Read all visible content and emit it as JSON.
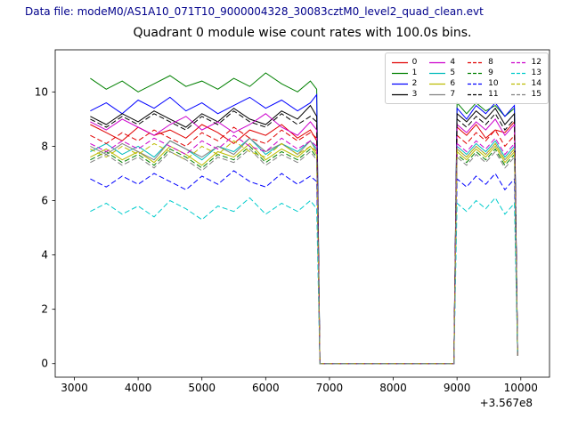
{
  "header": {
    "data_file_label": "Data file: modeM0/AS1A10_071T10_9000004328_30083cztM0_level2_quad_clean.evt"
  },
  "colors": {
    "data_file_text": "#00008b",
    "title_text": "#000000",
    "axes": "#000000",
    "legend_border": "#cccccc"
  },
  "chart_data": {
    "type": "line",
    "title": "Quadrant 0 module wise count rates with 100.0s bins.",
    "xlabel": "",
    "ylabel": "",
    "x_offset_label": "+3.567e8",
    "xlim": [
      2700,
      10450
    ],
    "ylim": [
      -0.5,
      11.55
    ],
    "x_ticks": [
      3000,
      4000,
      5000,
      6000,
      7000,
      8000,
      9000,
      10000
    ],
    "y_ticks": [
      0,
      2,
      4,
      6,
      8,
      10
    ],
    "grid": false,
    "legend_position": "upper right",
    "legend_columns": 4,
    "x": [
      3250,
      3500,
      3750,
      4000,
      4250,
      4500,
      4750,
      5000,
      5250,
      5500,
      5750,
      6000,
      6250,
      6500,
      6700,
      6800,
      6850,
      8950,
      9000,
      9150,
      9300,
      9450,
      9600,
      9750,
      9900,
      9950
    ],
    "series": [
      {
        "name": "0",
        "color": "#e00000",
        "style": "solid",
        "values": [
          8.8,
          8.5,
          8.2,
          8.7,
          8.4,
          8.6,
          8.3,
          8.8,
          8.5,
          8.1,
          8.6,
          8.4,
          8.8,
          8.3,
          8.6,
          8.2,
          0,
          0,
          8.7,
          8.4,
          8.8,
          8.3,
          8.6,
          8.5,
          8.9,
          0.3
        ]
      },
      {
        "name": "1",
        "color": "#008000",
        "style": "solid",
        "values": [
          10.5,
          10.1,
          10.4,
          10.0,
          10.3,
          10.6,
          10.2,
          10.4,
          10.1,
          10.5,
          10.2,
          10.7,
          10.3,
          10.0,
          10.4,
          10.1,
          0,
          0,
          9.6,
          9.2,
          9.6,
          9.3,
          9.5,
          9.1,
          9.4,
          0.3
        ]
      },
      {
        "name": "2",
        "color": "#0000ff",
        "style": "solid",
        "values": [
          9.3,
          9.6,
          9.2,
          9.7,
          9.4,
          9.8,
          9.3,
          9.6,
          9.2,
          9.5,
          9.8,
          9.4,
          9.7,
          9.3,
          9.6,
          9.9,
          0,
          0,
          9.4,
          9.0,
          9.5,
          9.2,
          9.6,
          9.1,
          9.5,
          0.3
        ]
      },
      {
        "name": "3",
        "color": "#000000",
        "style": "solid",
        "values": [
          9.1,
          8.8,
          9.2,
          8.9,
          9.3,
          9.0,
          8.7,
          9.2,
          8.9,
          9.4,
          9.0,
          8.8,
          9.3,
          9.0,
          9.5,
          9.1,
          0,
          0,
          9.2,
          8.9,
          9.3,
          9.0,
          9.4,
          8.8,
          9.2,
          0.3
        ]
      },
      {
        "name": "4",
        "color": "#cc00cc",
        "style": "solid",
        "values": [
          8.9,
          8.6,
          9.0,
          8.7,
          8.4,
          8.8,
          9.1,
          8.6,
          8.9,
          8.5,
          8.8,
          9.2,
          8.7,
          8.4,
          8.9,
          8.6,
          0,
          0,
          8.8,
          8.5,
          8.9,
          8.6,
          9.0,
          8.4,
          8.8,
          0.3
        ]
      },
      {
        "name": "5",
        "color": "#00bbbb",
        "style": "solid",
        "values": [
          7.8,
          8.1,
          7.7,
          8.0,
          7.6,
          8.2,
          7.9,
          7.5,
          8.0,
          7.8,
          8.3,
          7.7,
          8.1,
          7.8,
          8.2,
          7.9,
          0,
          0,
          8.0,
          7.7,
          8.1,
          7.8,
          8.2,
          7.6,
          8.0,
          0.3
        ]
      },
      {
        "name": "6",
        "color": "#bbbb00",
        "style": "solid",
        "values": [
          7.6,
          7.9,
          7.5,
          7.8,
          7.4,
          8.0,
          7.7,
          7.3,
          7.8,
          7.6,
          8.1,
          7.5,
          7.9,
          7.6,
          8.0,
          7.7,
          0,
          0,
          7.8,
          7.5,
          7.9,
          7.6,
          8.0,
          7.4,
          7.8,
          0.3
        ]
      },
      {
        "name": "7",
        "color": "#808080",
        "style": "solid",
        "values": [
          8.0,
          7.7,
          8.1,
          7.8,
          7.5,
          8.2,
          7.9,
          7.6,
          8.0,
          7.7,
          8.3,
          7.8,
          8.1,
          7.7,
          8.2,
          7.8,
          0,
          0,
          7.9,
          7.6,
          8.0,
          7.7,
          8.1,
          7.5,
          7.9,
          0.3
        ]
      },
      {
        "name": "8",
        "color": "#e00000",
        "style": "dashed",
        "values": [
          8.4,
          8.1,
          8.5,
          8.2,
          8.6,
          8.3,
          8.0,
          8.5,
          8.2,
          8.7,
          8.3,
          8.1,
          8.6,
          8.2,
          8.5,
          8.3,
          0,
          0,
          8.4,
          8.1,
          8.5,
          8.2,
          8.6,
          8.0,
          8.4,
          0.3
        ]
      },
      {
        "name": "9",
        "color": "#008000",
        "style": "dashed",
        "values": [
          7.5,
          7.8,
          7.4,
          7.7,
          7.3,
          7.9,
          7.6,
          7.2,
          7.7,
          7.5,
          8.0,
          7.4,
          7.8,
          7.5,
          7.9,
          7.6,
          0,
          0,
          7.7,
          7.4,
          7.8,
          7.5,
          7.9,
          7.3,
          7.7,
          0.3
        ]
      },
      {
        "name": "10",
        "color": "#0000ff",
        "style": "dashed",
        "values": [
          6.8,
          6.5,
          6.9,
          6.6,
          7.0,
          6.7,
          6.4,
          6.9,
          6.6,
          7.1,
          6.7,
          6.5,
          7.0,
          6.6,
          6.9,
          6.7,
          0,
          0,
          6.8,
          6.5,
          6.9,
          6.6,
          7.0,
          6.4,
          6.8,
          0.3
        ]
      },
      {
        "name": "11",
        "color": "#000000",
        "style": "dashed",
        "values": [
          9.0,
          8.7,
          9.1,
          8.8,
          9.2,
          8.9,
          8.6,
          9.1,
          8.8,
          9.3,
          8.9,
          8.7,
          9.2,
          8.8,
          9.1,
          8.9,
          0,
          0,
          9.0,
          8.7,
          9.1,
          8.8,
          9.2,
          8.6,
          9.0,
          0.3
        ]
      },
      {
        "name": "12",
        "color": "#cc00cc",
        "style": "dashed",
        "values": [
          8.1,
          7.8,
          8.2,
          7.9,
          8.3,
          8.0,
          7.7,
          8.2,
          7.9,
          8.4,
          8.0,
          7.8,
          8.3,
          7.9,
          8.2,
          8.0,
          0,
          0,
          8.1,
          7.8,
          8.2,
          7.9,
          8.3,
          7.7,
          8.1,
          0.3
        ]
      },
      {
        "name": "13",
        "color": "#00cccc",
        "style": "dashed",
        "values": [
          5.6,
          5.9,
          5.5,
          5.8,
          5.4,
          6.0,
          5.7,
          5.3,
          5.8,
          5.6,
          6.1,
          5.5,
          5.9,
          5.6,
          6.0,
          5.7,
          0,
          0,
          5.9,
          5.6,
          6.0,
          5.7,
          6.1,
          5.5,
          5.9,
          0.3
        ]
      },
      {
        "name": "14",
        "color": "#bbbb00",
        "style": "dashed",
        "values": [
          7.9,
          7.6,
          8.0,
          7.7,
          8.1,
          7.8,
          7.5,
          8.0,
          7.7,
          8.2,
          7.8,
          7.6,
          8.1,
          7.7,
          8.0,
          7.8,
          0,
          0,
          7.9,
          7.6,
          8.0,
          7.7,
          8.1,
          7.5,
          7.9,
          0.3
        ]
      },
      {
        "name": "15",
        "color": "#808080",
        "style": "dashed",
        "values": [
          7.4,
          7.7,
          7.3,
          7.6,
          7.2,
          7.8,
          7.5,
          7.1,
          7.6,
          7.4,
          7.9,
          7.3,
          7.7,
          7.4,
          7.8,
          7.5,
          0,
          0,
          7.6,
          7.3,
          7.7,
          7.4,
          7.8,
          7.2,
          7.6,
          0.3
        ]
      }
    ]
  }
}
